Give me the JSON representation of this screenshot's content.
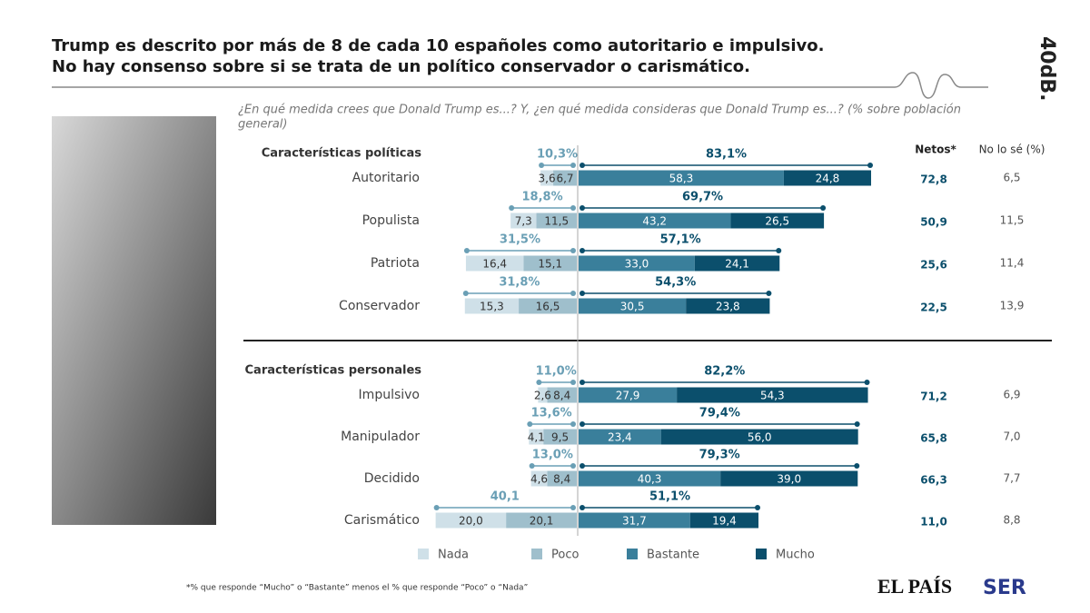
{
  "chart_data": {
    "type": "diverging-bar",
    "title": [
      "Trump es descrito por más de 8 de cada 10 españoles como autoritario e impulsivo.",
      "No hay consenso sobre si se trata de un político conservador o carismático."
    ],
    "subtitle": [
      "¿En qué medida crees que Donald Trump es...? Y, ¿en qué medida consideras que Donald Trump es...? (% sobre población",
      "general)"
    ],
    "brand": "40dB.",
    "columns": [
      "Netos*",
      "No lo sé (%)"
    ],
    "legend": [
      {
        "name": "Nada",
        "color": "#cfe0e8"
      },
      {
        "name": "Poco",
        "color": "#9fbfcc"
      },
      {
        "name": "Bastante",
        "color": "#3a7f9b"
      },
      {
        "name": "Mucho",
        "color": "#0b4f6c"
      }
    ],
    "groups": [
      {
        "label": "Características políticas",
        "categories": [
          "Autoritario",
          "Populista",
          "Patriota",
          "Conservador"
        ],
        "series": [
          {
            "values": [
              3.6,
              7.3,
              16.4,
              15.3
            ],
            "value_labels": [
              "3,6",
              "7,3",
              "16,4",
              "15,3"
            ]
          },
          {
            "values": [
              6.7,
              11.5,
              15.1,
              16.5
            ],
            "value_labels": [
              "6,7",
              "11,5",
              "15,1",
              "16,5"
            ]
          },
          {
            "values": [
              58.3,
              43.2,
              33.0,
              30.5
            ],
            "value_labels": [
              "58,3",
              "43,2",
              "33,0",
              "30,5"
            ]
          },
          {
            "values": [
              24.8,
              26.5,
              24.1,
              23.8
            ],
            "value_labels": [
              "24,8",
              "26,5",
              "24,1",
              "23,8"
            ]
          }
        ],
        "negative_totals": {
          "values": [
            10.3,
            18.8,
            31.5,
            31.8
          ],
          "value_labels": [
            "10,3%",
            "18,8%",
            "31,5%",
            "31,8%"
          ]
        },
        "positive_totals": {
          "values": [
            83.1,
            69.7,
            57.1,
            54.3
          ],
          "value_labels": [
            "83,1%",
            "69,7%",
            "57,1%",
            "54,3%"
          ]
        },
        "netos": {
          "values": [
            72.8,
            50.9,
            25.6,
            22.5
          ],
          "value_labels": [
            "72,8",
            "50,9",
            "25,6",
            "22,5"
          ]
        },
        "no_lo_se": {
          "values": [
            6.5,
            11.5,
            11.4,
            13.9
          ],
          "value_labels": [
            "6,5",
            "11,5",
            "11,4",
            "13,9"
          ]
        }
      },
      {
        "label": "Características personales",
        "categories": [
          "Impulsivo",
          "Manipulador",
          "Decidido",
          "Carismático"
        ],
        "series": [
          {
            "values": [
              2.6,
              4.1,
              4.6,
              20.0
            ],
            "value_labels": [
              "2,6",
              "4,1",
              "4,6",
              "20,0"
            ]
          },
          {
            "values": [
              8.4,
              9.5,
              8.4,
              20.1
            ],
            "value_labels": [
              "8,4",
              "9,5",
              "8,4",
              "20,1"
            ]
          },
          {
            "values": [
              27.9,
              23.4,
              40.3,
              31.7
            ],
            "value_labels": [
              "27,9",
              "23,4",
              "40,3",
              "31,7"
            ]
          },
          {
            "values": [
              54.3,
              56.0,
              39.0,
              19.4
            ],
            "value_labels": [
              "54,3",
              "56,0",
              "39,0",
              "19,4"
            ]
          }
        ],
        "negative_totals": {
          "values": [
            11.0,
            13.6,
            13.0,
            40.1
          ],
          "value_labels": [
            "11,0%",
            "13,6%",
            "13,0%",
            "40,1"
          ]
        },
        "positive_totals": {
          "values": [
            82.2,
            79.4,
            79.3,
            51.1
          ],
          "value_labels": [
            "82,2%",
            "79,4%",
            "79,3%",
            "51,1%"
          ]
        },
        "netos": {
          "values": [
            71.2,
            65.8,
            66.3,
            11.0
          ],
          "value_labels": [
            "71,2",
            "65,8",
            "66,3",
            "11,0"
          ]
        },
        "no_lo_se": {
          "values": [
            6.9,
            7.0,
            7.7,
            8.8
          ],
          "value_labels": [
            "6,9",
            "7,0",
            "7,7",
            "8,8"
          ]
        }
      }
    ],
    "footnote": "*% que responde “Mucho” o “Bastante” menos el % que responde “Poco” o “Nada”",
    "logos": [
      "EL PAÍS",
      "SER"
    ]
  }
}
